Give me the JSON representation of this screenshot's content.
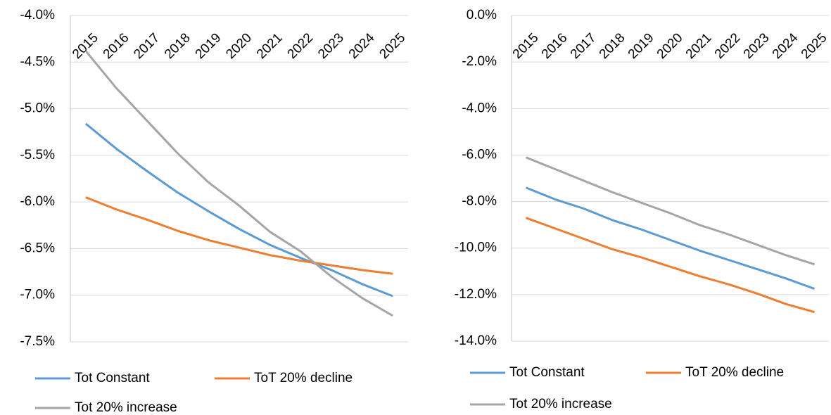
{
  "chart_data": [
    {
      "type": "line",
      "categories": [
        "2015",
        "2016",
        "2017",
        "2018",
        "2019",
        "2020",
        "2021",
        "2022",
        "2023",
        "2024",
        "2025"
      ],
      "ylim": [
        -7.5,
        -4.0
      ],
      "yticks": [
        {
          "value": -7.5,
          "label": "-7.5%"
        },
        {
          "value": -7.0,
          "label": "-7.0%"
        },
        {
          "value": -6.5,
          "label": "-6.5%"
        },
        {
          "value": -6.0,
          "label": "-6.0%"
        },
        {
          "value": -5.5,
          "label": "-5.5%"
        },
        {
          "value": -5.0,
          "label": "-5.0%"
        },
        {
          "value": -4.5,
          "label": "-4.5%"
        },
        {
          "value": -4.0,
          "label": "-4.0%"
        }
      ],
      "grid": true,
      "series": [
        {
          "name": "Tot Constant",
          "color": "#5b9bd5",
          "values": [
            -5.16,
            -5.43,
            -5.67,
            -5.9,
            -6.1,
            -6.29,
            -6.46,
            -6.6,
            -6.73,
            -6.88,
            -7.01
          ]
        },
        {
          "name": "ToT 20% decline",
          "color": "#ed7d31",
          "values": [
            -5.95,
            -6.08,
            -6.19,
            -6.31,
            -6.41,
            -6.49,
            -6.57,
            -6.63,
            -6.68,
            -6.73,
            -6.77
          ]
        },
        {
          "name": "Tot 20% increase",
          "color": "#a5a5a5",
          "values": [
            -4.38,
            -4.78,
            -5.13,
            -5.48,
            -5.79,
            -6.04,
            -6.32,
            -6.53,
            -6.8,
            -7.03,
            -7.22
          ]
        }
      ]
    },
    {
      "type": "line",
      "categories": [
        "2015",
        "2016",
        "2017",
        "2018",
        "2019",
        "2020",
        "2021",
        "2022",
        "2023",
        "2024",
        "2025"
      ],
      "ylim": [
        -14,
        0
      ],
      "yticks": [
        {
          "value": -14,
          "label": "-14.0%"
        },
        {
          "value": -12,
          "label": "-12.0%"
        },
        {
          "value": -10,
          "label": "-10.0%"
        },
        {
          "value": -8,
          "label": "-8.0%"
        },
        {
          "value": -6,
          "label": "-6.0%"
        },
        {
          "value": -4,
          "label": "-4.0%"
        },
        {
          "value": -2,
          "label": "-2.0%"
        },
        {
          "value": 0,
          "label": "0.0%"
        }
      ],
      "grid": true,
      "series": [
        {
          "name": "Tot Constant",
          "color": "#5b9bd5",
          "values": [
            -7.4,
            -7.9,
            -8.3,
            -8.8,
            -9.2,
            -9.65,
            -10.1,
            -10.5,
            -10.9,
            -11.3,
            -11.75
          ]
        },
        {
          "name": "ToT 20% decline",
          "color": "#ed7d31",
          "values": [
            -8.7,
            -9.15,
            -9.6,
            -10.05,
            -10.4,
            -10.8,
            -11.2,
            -11.55,
            -11.95,
            -12.4,
            -12.75
          ]
        },
        {
          "name": "Tot 20% increase",
          "color": "#a5a5a5",
          "values": [
            -6.1,
            -6.6,
            -7.1,
            -7.6,
            -8.05,
            -8.5,
            -9.0,
            -9.4,
            -9.85,
            -10.3,
            -10.7
          ]
        }
      ]
    }
  ]
}
